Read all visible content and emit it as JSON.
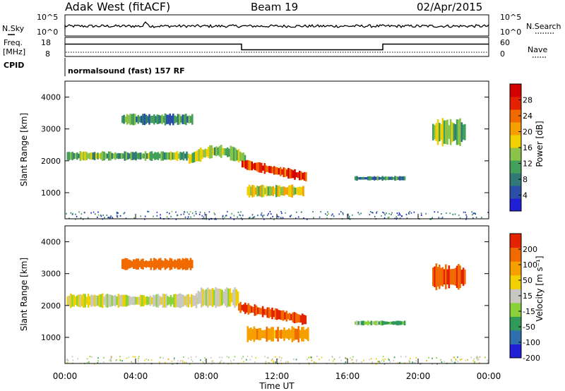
{
  "header": {
    "station": "Adak West (fitACF)",
    "beam": "Beam 19",
    "date": "02/Apr/2015"
  },
  "strip_panels": {
    "nsky_label": "N.Sky",
    "nsearch_label": "N.Search",
    "noise_ticks": [
      "10^5",
      "10^0"
    ],
    "freq_label": "Freq.",
    "freq_unit": "[MHz]",
    "freq_ticks": [
      "18",
      "8"
    ],
    "nave_label": "Nave",
    "nave_ticks": [
      "60",
      "0"
    ],
    "cpid_label": "CPID",
    "cpid_text": "normalsound (fast) 157 RF"
  },
  "chart_data": [
    {
      "type": "heatmap",
      "name": "power",
      "xlabel": "",
      "ylabel": "Slant Range [km]",
      "x_ticks": [
        "00:00",
        "04:00",
        "08:00",
        "12:00",
        "16:00",
        "20:00",
        "00:00"
      ],
      "x_range_hours": [
        0,
        24
      ],
      "y_ticks": [
        1000,
        2000,
        3000,
        4000
      ],
      "y_range_km": [
        180,
        4500
      ],
      "colorbar": {
        "label": "Power [dB]",
        "ticks": [
          4,
          8,
          12,
          16,
          20,
          24,
          28
        ],
        "range": [
          0,
          32
        ],
        "colors": [
          "#1f1fd6",
          "#2b4fa8",
          "#2f7a76",
          "#43a05a",
          "#8bc34a",
          "#f0d000",
          "#f6a000",
          "#f06a00",
          "#e42200",
          "#d40000"
        ]
      },
      "echo_regions": [
        {
          "t_start": 0.1,
          "t_end": 7.0,
          "r_center": 2150,
          "r_halfwidth": 120,
          "power": 12,
          "desc": "main band"
        },
        {
          "t_start": 7.0,
          "t_end": 10.2,
          "r_center": 2050,
          "r_halfwidth": 180,
          "power": 14
        },
        {
          "t_start": 10.0,
          "t_end": 13.6,
          "r_center": 1650,
          "r_halfwidth": 130,
          "power": 26
        },
        {
          "t_start": 10.3,
          "t_end": 13.5,
          "r_center": 1050,
          "r_halfwidth": 160,
          "power": 16
        },
        {
          "t_start": 3.2,
          "t_end": 7.2,
          "r_center": 3300,
          "r_halfwidth": 150,
          "power": 10
        },
        {
          "t_start": 16.4,
          "t_end": 19.2,
          "r_center": 1450,
          "r_halfwidth": 60,
          "power": 9
        },
        {
          "t_start": 20.8,
          "t_end": 22.6,
          "r_center": 2900,
          "r_halfwidth": 350,
          "power": 14
        }
      ]
    },
    {
      "type": "heatmap",
      "name": "velocity",
      "xlabel": "Time UT",
      "ylabel": "Slant Range [km]",
      "x_ticks": [
        "00:00",
        "04:00",
        "08:00",
        "12:00",
        "16:00",
        "20:00",
        "00:00"
      ],
      "x_range_hours": [
        0,
        24
      ],
      "y_ticks": [
        1000,
        2000,
        3000,
        4000
      ],
      "y_range_km": [
        180,
        4500
      ],
      "colorbar": {
        "label": "Velocity [m s⁻¹]",
        "ticks": [
          200,
          100,
          50,
          15,
          -15,
          -50,
          -100,
          -200
        ],
        "colors": [
          "#1f1fd6",
          "#2f6fb0",
          "#2f9a5a",
          "#8bd23a",
          "#c8c8c0",
          "#f0d000",
          "#f6a000",
          "#f06a00",
          "#e42200"
        ]
      },
      "echo_regions": [
        {
          "t_start": 0.1,
          "t_end": 7.5,
          "r_center": 2150,
          "r_halfwidth": 180,
          "velocity": 0
        },
        {
          "t_start": 7.5,
          "t_end": 9.8,
          "r_center": 2250,
          "r_halfwidth": 250,
          "velocity": 0
        },
        {
          "t_start": 9.8,
          "t_end": 13.6,
          "r_center": 1700,
          "r_halfwidth": 140,
          "velocity": -150
        },
        {
          "t_start": 10.3,
          "t_end": 13.8,
          "r_center": 1100,
          "r_halfwidth": 200,
          "velocity": -60
        },
        {
          "t_start": 3.2,
          "t_end": 7.2,
          "r_center": 3300,
          "r_halfwidth": 150,
          "velocity": -120
        },
        {
          "t_start": 16.4,
          "t_end": 19.2,
          "r_center": 1450,
          "r_halfwidth": 60,
          "velocity": 30
        },
        {
          "t_start": 20.8,
          "t_end": 22.6,
          "r_center": 2900,
          "r_halfwidth": 350,
          "velocity": -150
        }
      ]
    }
  ],
  "nave_step_hours": [
    {
      "t_start": 0,
      "t_end": 10.0,
      "freq_level": 0.65
    },
    {
      "t_start": 10.0,
      "t_end": 18.0,
      "freq_level": 0.35
    },
    {
      "t_start": 18.0,
      "t_end": 24.0,
      "freq_level": 0.65
    }
  ]
}
